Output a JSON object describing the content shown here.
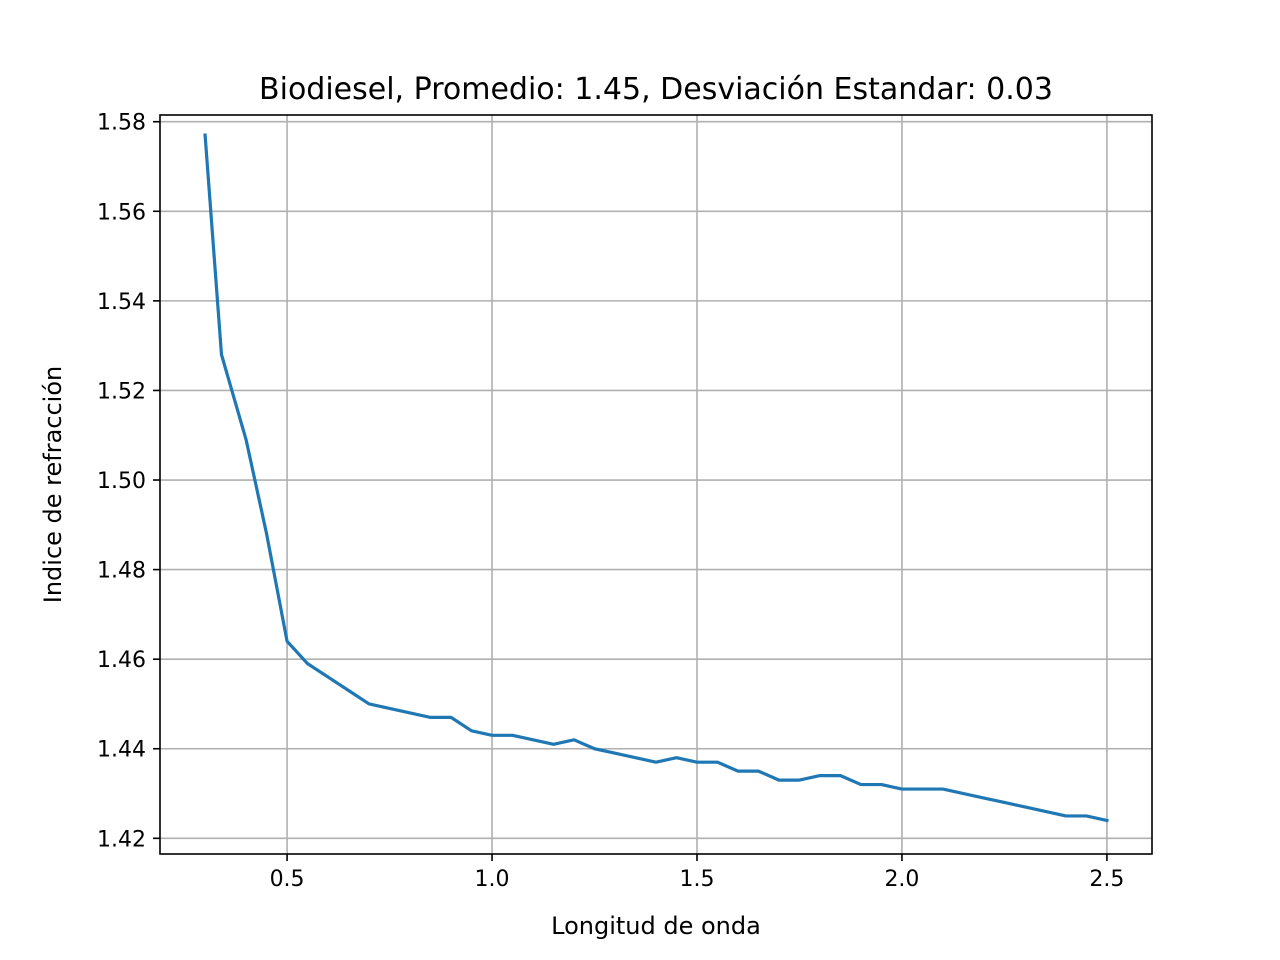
{
  "chart_data": {
    "type": "line",
    "title": "Biodiesel, Promedio: 1.45, Desviación Estandar: 0.03",
    "xlabel": "Longitud de onda",
    "ylabel": "Indice de refracción",
    "xlim": [
      0.19,
      2.61
    ],
    "ylim": [
      1.4165,
      1.5815
    ],
    "xticks": [
      0.5,
      1.0,
      1.5,
      2.0,
      2.5
    ],
    "xtick_labels": [
      "0.5",
      "1.0",
      "1.5",
      "2.0",
      "2.5"
    ],
    "yticks": [
      1.42,
      1.44,
      1.46,
      1.48,
      1.5,
      1.52,
      1.54,
      1.56,
      1.58
    ],
    "ytick_labels": [
      "1.42",
      "1.44",
      "1.46",
      "1.48",
      "1.50",
      "1.52",
      "1.54",
      "1.56",
      "1.58"
    ],
    "grid": true,
    "line_color": "#1f77b4",
    "series": [
      {
        "x": [
          0.3,
          0.34,
          0.4,
          0.45,
          0.5,
          0.55,
          0.6,
          0.65,
          0.7,
          0.75,
          0.8,
          0.85,
          0.9,
          0.95,
          1.0,
          1.05,
          1.1,
          1.15,
          1.2,
          1.25,
          1.3,
          1.35,
          1.4,
          1.45,
          1.5,
          1.55,
          1.6,
          1.65,
          1.7,
          1.75,
          1.8,
          1.85,
          1.9,
          1.95,
          2.0,
          2.05,
          2.1,
          2.15,
          2.2,
          2.25,
          2.3,
          2.35,
          2.4,
          2.45,
          2.5
        ],
        "values": [
          1.577,
          1.528,
          1.509,
          1.488,
          1.464,
          1.459,
          1.456,
          1.453,
          1.45,
          1.449,
          1.448,
          1.447,
          1.447,
          1.444,
          1.443,
          1.443,
          1.442,
          1.441,
          1.442,
          1.44,
          1.439,
          1.438,
          1.437,
          1.438,
          1.437,
          1.437,
          1.435,
          1.435,
          1.433,
          1.433,
          1.434,
          1.434,
          1.432,
          1.432,
          1.431,
          1.431,
          1.431,
          1.43,
          1.429,
          1.428,
          1.427,
          1.426,
          1.425,
          1.425,
          1.424
        ]
      }
    ]
  }
}
